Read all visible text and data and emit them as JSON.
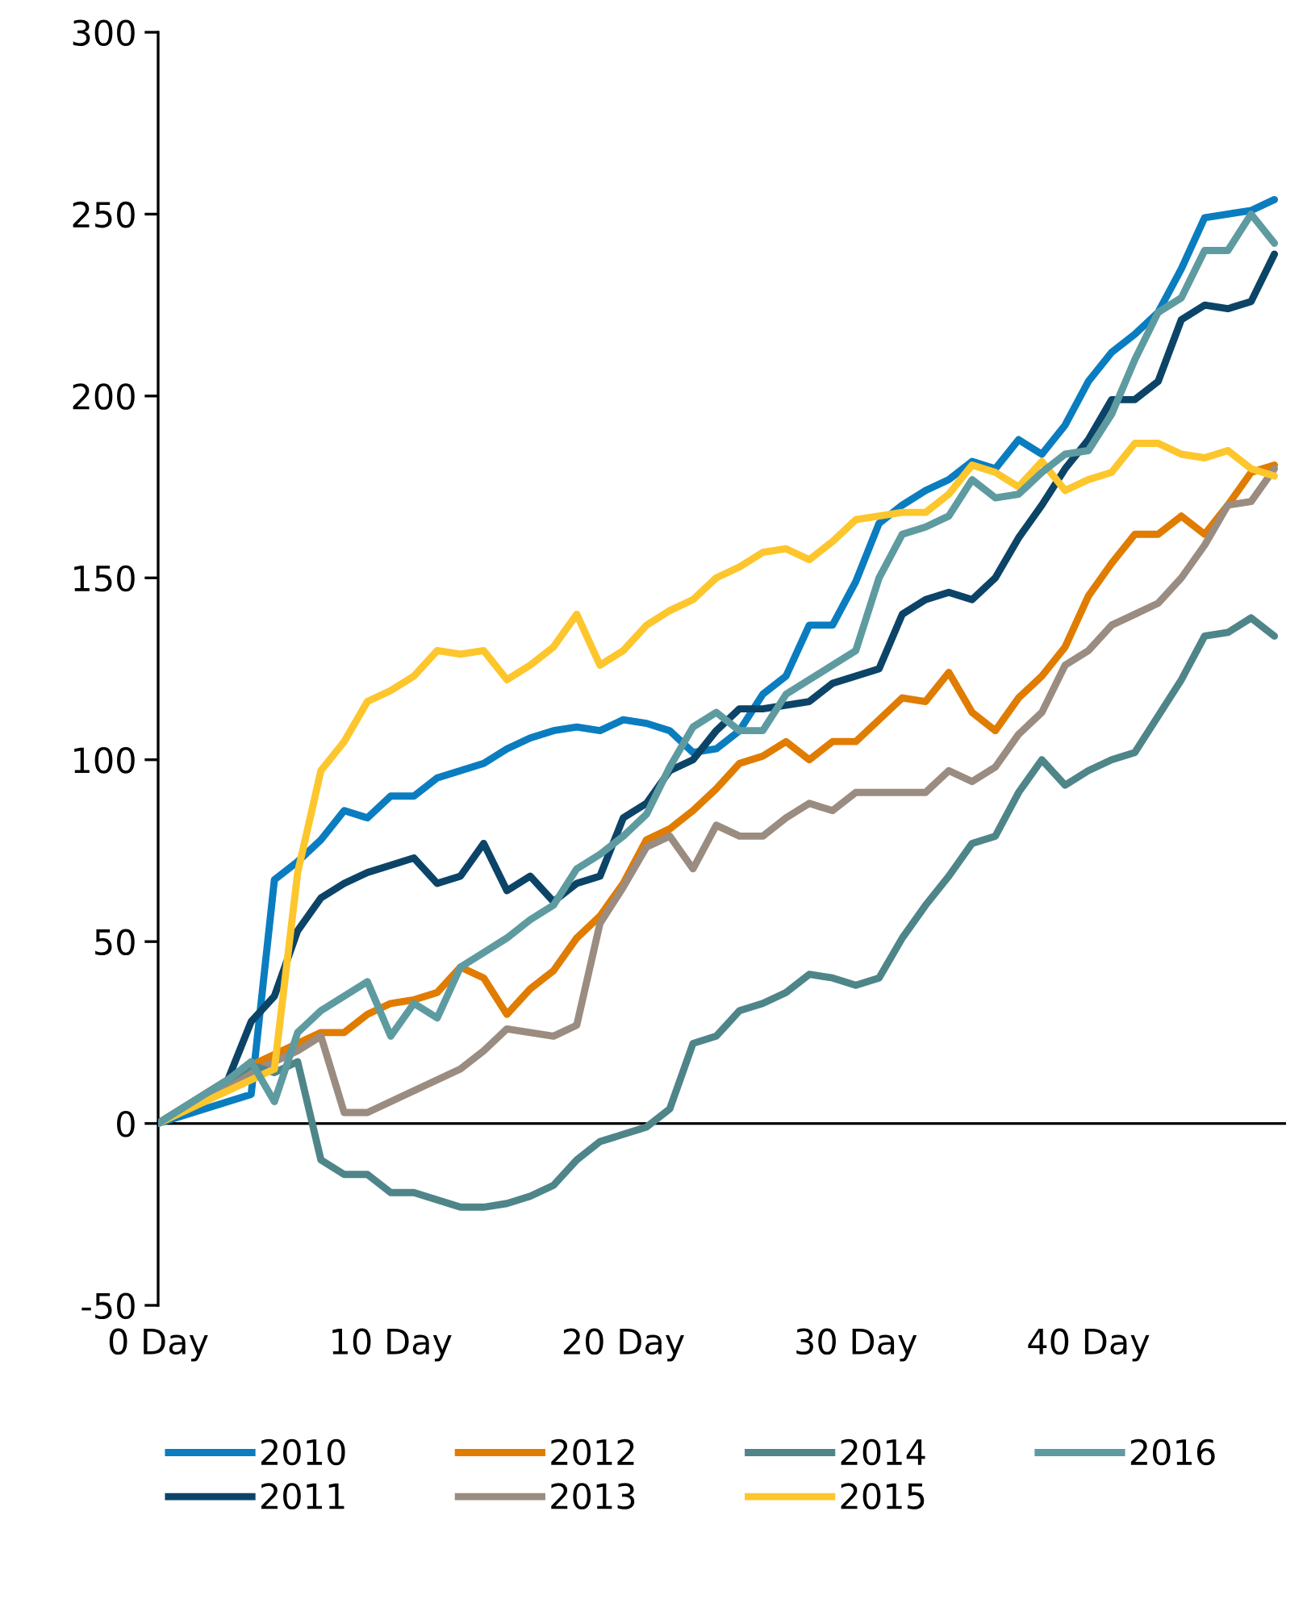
{
  "chart_data": {
    "type": "line",
    "x": [
      0,
      1,
      2,
      3,
      4,
      5,
      6,
      7,
      8,
      9,
      10,
      11,
      12,
      13,
      14,
      15,
      16,
      17,
      18,
      19,
      20,
      21,
      22,
      23,
      24,
      25,
      26,
      27,
      28,
      29,
      30,
      31,
      32,
      33,
      34,
      35,
      36,
      37,
      38,
      39,
      40,
      41,
      42,
      43,
      44,
      45,
      46,
      47,
      48
    ],
    "series": [
      {
        "name": "2010",
        "color": "#0a7dc0",
        "values": [
          0,
          2,
          4,
          6,
          8,
          67,
          72,
          78,
          86,
          84,
          90,
          90,
          95,
          97,
          99,
          103,
          106,
          108,
          109,
          108,
          111,
          110,
          108,
          102,
          103,
          108,
          118,
          123,
          137,
          137,
          149,
          165,
          170,
          174,
          177,
          182,
          180,
          188,
          184,
          192,
          204,
          212,
          217,
          223,
          235,
          249,
          250,
          251,
          254
        ]
      },
      {
        "name": "2011",
        "color": "#0c4468",
        "values": [
          0,
          4,
          8,
          12,
          28,
          35,
          53,
          62,
          66,
          69,
          71,
          73,
          66,
          68,
          77,
          64,
          68,
          61,
          66,
          68,
          84,
          88,
          97,
          100,
          108,
          114,
          114,
          115,
          116,
          121,
          123,
          125,
          140,
          144,
          146,
          144,
          150,
          161,
          170,
          180,
          188,
          199,
          199,
          204,
          221,
          225,
          224,
          226,
          239
        ]
      },
      {
        "name": "2012",
        "color": "#e07c00",
        "values": [
          0,
          4,
          8,
          12,
          16,
          19,
          22,
          25,
          25,
          30,
          33,
          34,
          36,
          43,
          40,
          30,
          37,
          42,
          51,
          57,
          66,
          78,
          81,
          86,
          92,
          99,
          101,
          105,
          100,
          105,
          105,
          111,
          117,
          116,
          124,
          113,
          108,
          117,
          123,
          131,
          145,
          154,
          162,
          162,
          167,
          162,
          170,
          179,
          181
        ]
      },
      {
        "name": "2013",
        "color": "#9a8c80",
        "values": [
          0,
          4,
          8,
          11,
          14,
          17,
          20,
          24,
          3,
          3,
          6,
          9,
          12,
          15,
          20,
          26,
          25,
          24,
          27,
          55,
          65,
          76,
          79,
          70,
          82,
          79,
          79,
          84,
          88,
          86,
          91,
          91,
          91,
          91,
          97,
          94,
          98,
          107,
          113,
          126,
          130,
          137,
          140,
          143,
          150,
          159,
          170,
          171,
          180
        ]
      },
      {
        "name": "2014",
        "color": "#4e8589",
        "values": [
          0,
          4,
          8,
          12,
          16,
          14,
          17,
          -10,
          -14,
          -14,
          -19,
          -19,
          -21,
          -23,
          -23,
          -22,
          -20,
          -17,
          -10,
          -5,
          -3,
          -1,
          4,
          22,
          24,
          31,
          33,
          36,
          41,
          40,
          38,
          40,
          51,
          60,
          68,
          77,
          79,
          91,
          100,
          93,
          97,
          100,
          102,
          112,
          122,
          134,
          135,
          139,
          134
        ]
      },
      {
        "name": "2015",
        "color": "#fdc62c",
        "values": [
          0,
          3,
          6,
          9,
          12,
          15,
          69,
          97,
          105,
          116,
          119,
          123,
          130,
          129,
          130,
          122,
          126,
          131,
          140,
          126,
          130,
          137,
          141,
          144,
          150,
          153,
          157,
          158,
          155,
          160,
          166,
          167,
          168,
          168,
          173,
          181,
          179,
          175,
          182,
          174,
          177,
          179,
          187,
          187,
          184,
          183,
          185,
          180,
          178
        ]
      },
      {
        "name": "2016",
        "color": "#5e9ba0",
        "values": [
          0,
          4,
          8,
          12,
          17,
          6,
          25,
          31,
          35,
          39,
          24,
          33,
          29,
          43,
          47,
          51,
          56,
          60,
          70,
          74,
          79,
          85,
          98,
          109,
          113,
          108,
          108,
          118,
          122,
          126,
          130,
          150,
          162,
          164,
          167,
          177,
          172,
          173,
          179,
          184,
          185,
          195,
          210,
          223,
          227,
          240,
          240,
          250,
          242
        ]
      }
    ],
    "xlim": [
      0,
      48.5
    ],
    "xticks": [
      {
        "value": 0,
        "label": "0 Day"
      },
      {
        "value": 10,
        "label": "10 Day"
      },
      {
        "value": 20,
        "label": "20 Day"
      },
      {
        "value": 30,
        "label": "30 Day"
      },
      {
        "value": 40,
        "label": "40 Day"
      }
    ],
    "ylim": [
      -50,
      300
    ],
    "yticks": [
      -50,
      0,
      50,
      100,
      150,
      200,
      250,
      300
    ],
    "ref_lines": [
      {
        "axis": "y",
        "value": 0,
        "color": "#000000"
      }
    ],
    "grid": false,
    "legend": "bottom",
    "marker": "none",
    "line_style": "solid"
  }
}
